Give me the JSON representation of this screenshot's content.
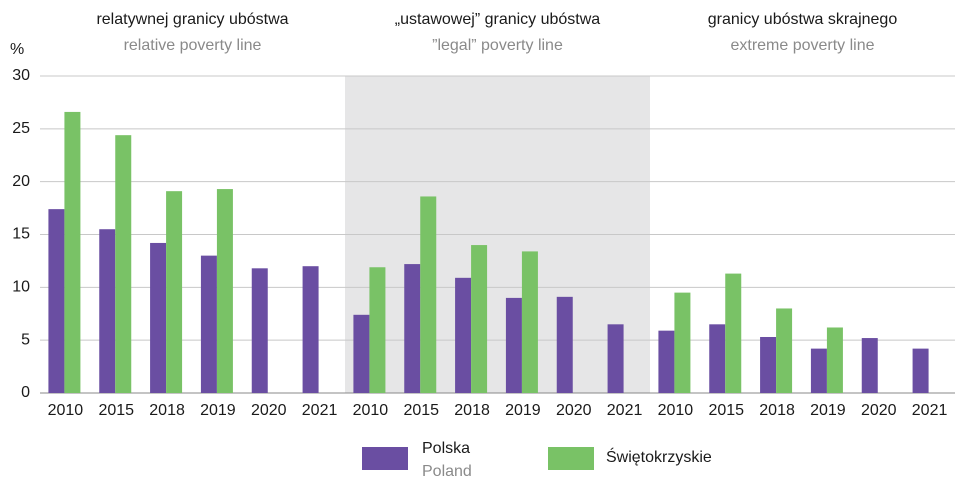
{
  "chart_data": {
    "type": "bar",
    "y_unit": "%",
    "groups": [
      {
        "title": "relatywnej granicy ubóstwa",
        "subtitle": "relative poverty line"
      },
      {
        "title": "„ustawowej” granicy ubóstwa",
        "subtitle": "”legal” poverty line"
      },
      {
        "title": "granicy ubóstwa skrajnego",
        "subtitle": "extreme poverty line"
      }
    ],
    "categories": [
      "2010",
      "2015",
      "2018",
      "2019",
      "2020",
      "2021",
      "2010",
      "2015",
      "2018",
      "2019",
      "2020",
      "2021",
      "2010",
      "2015",
      "2018",
      "2019",
      "2020",
      "2021"
    ],
    "series": [
      {
        "name": "Polska",
        "name_en": "Poland",
        "color": "#6a4ea2",
        "values": [
          17.4,
          15.5,
          14.2,
          13.0,
          11.8,
          12.0,
          7.4,
          12.2,
          10.9,
          9.0,
          9.1,
          6.5,
          5.9,
          6.5,
          5.3,
          4.2,
          5.2,
          4.2
        ]
      },
      {
        "name": "Świętokrzyskie",
        "color": "#79c266",
        "values": [
          26.6,
          24.4,
          19.1,
          19.3,
          null,
          null,
          11.9,
          18.6,
          14.0,
          13.4,
          null,
          null,
          9.5,
          11.3,
          8.0,
          6.2,
          null,
          null
        ]
      }
    ],
    "ylim": [
      0,
      30
    ],
    "yticks": [
      0,
      5,
      10,
      15,
      20,
      25,
      30
    ],
    "grid": true
  }
}
